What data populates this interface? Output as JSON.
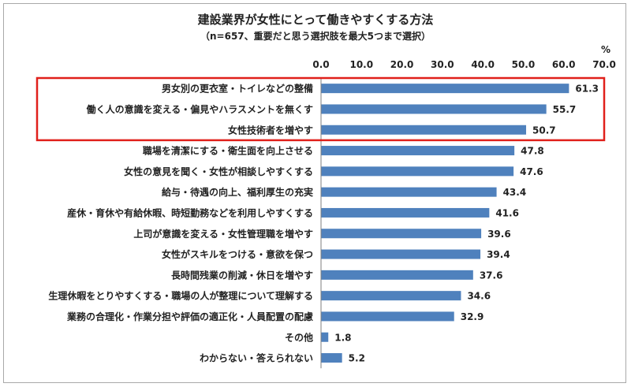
{
  "chart_data": {
    "type": "bar",
    "orientation": "horizontal",
    "title": "建設業界が女性にとって働きやすくする方法",
    "subtitle": "（n=657、重要だと思う選択肢を最大5つまで選択）",
    "unit": "%",
    "xlim": [
      0,
      70
    ],
    "ticks": [
      "0.0",
      "10.0",
      "20.0",
      "30.0",
      "40.0",
      "50.0",
      "60.0",
      "70.0"
    ],
    "tick_values": [
      0,
      10,
      20,
      30,
      40,
      50,
      60,
      70
    ],
    "grid": false,
    "bar_color": "#4f81bd",
    "highlight_color": "#e0201b",
    "highlighted_count": 3,
    "categories": [
      "男女別の更衣室・トイレなどの整備",
      "働く人の意識を変える・偏見やハラスメントを無くす",
      "女性技術者を増やす",
      "職場を清潔にする・衛生面を向上させる",
      "女性の意見を聞く・女性が相談しやすくする",
      "給与・待遇の向上、福利厚生の充実",
      "産休・育休や有給休暇、時短勤務などを利用しやすくする",
      "上司が意識を変える・女性管理職を増やす",
      "女性がスキルをつける・意欲を保つ",
      "長時間残業の削減・休日を増やす",
      "生理休暇をとりやすくする・職場の人が整理について理解する",
      "業務の合理化・作業分担や評価の適正化・人員配置の配慮",
      "その他",
      "わからない・答えられない"
    ],
    "values": [
      61.3,
      55.7,
      50.7,
      47.8,
      47.6,
      43.4,
      41.6,
      39.6,
      39.4,
      37.6,
      34.6,
      32.9,
      1.8,
      5.2
    ],
    "value_labels": [
      "61.3",
      "55.7",
      "50.7",
      "47.8",
      "47.6",
      "43.4",
      "41.6",
      "39.6",
      "39.4",
      "37.6",
      "34.6",
      "32.9",
      "1.8",
      "5.2"
    ]
  }
}
